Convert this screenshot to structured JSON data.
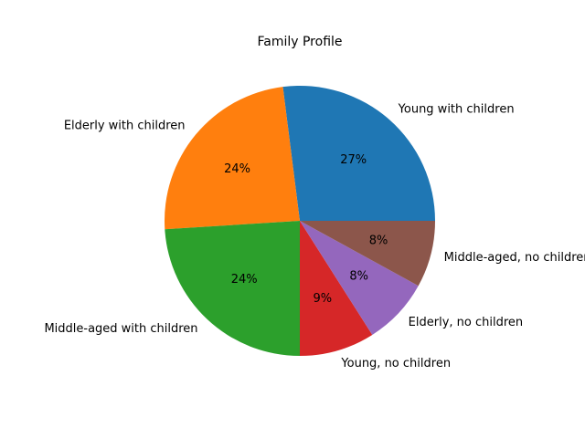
{
  "chart_data": {
    "type": "pie",
    "title": "Family Profile",
    "start_angle_deg": 0,
    "direction": "counterclockwise",
    "slices": [
      {
        "label": "Young with children",
        "value": 27,
        "pct_label": "27%",
        "color": "#1f77b4"
      },
      {
        "label": "Elderly with children",
        "value": 24,
        "pct_label": "24%",
        "color": "#ff7f0e"
      },
      {
        "label": "Middle-aged with children",
        "value": 24,
        "pct_label": "24%",
        "color": "#2ca02c"
      },
      {
        "label": "Young, no children",
        "value": 9,
        "pct_label": "9%",
        "color": "#d62728"
      },
      {
        "label": "Elderly, no children",
        "value": 8,
        "pct_label": "8%",
        "color": "#9467bd"
      },
      {
        "label": "Middle-aged, no children",
        "value": 8,
        "pct_label": "8%",
        "color": "#8c564b"
      }
    ]
  }
}
